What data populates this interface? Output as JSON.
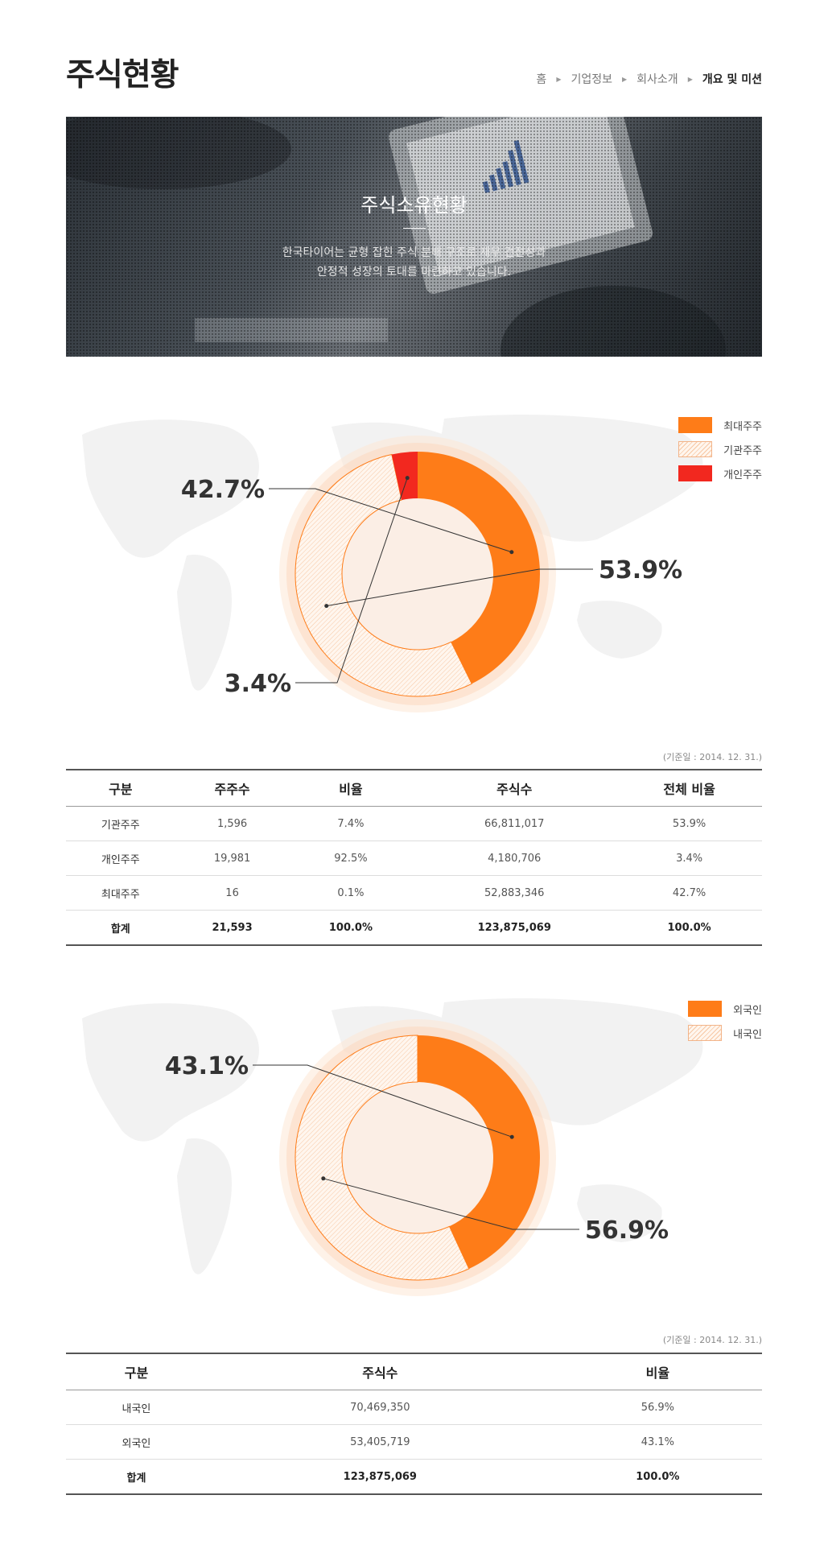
{
  "header": {
    "title": "주식현황",
    "breadcrumb": [
      "홈",
      "기업정보",
      "회사소개",
      "개요 및 미션"
    ]
  },
  "hero": {
    "title": "주식소유현황",
    "desc_line1": "한국타이어는 균형 잡힌 주식 분배 구조로 재무 건전성과",
    "desc_line2": "안정적 성장의 토대를 마련하고 있습니다."
  },
  "colors": {
    "orange": "#fe7c18",
    "red": "#f2281f",
    "hatch": "#f7c7a4",
    "map": "#f2f2f2"
  },
  "chart_data": [
    {
      "type": "pie",
      "variant": "donut",
      "series": [
        {
          "name": "최대주주",
          "value": 42.7,
          "label": "42.7%",
          "color": "#fe7c18"
        },
        {
          "name": "기관주주",
          "value": 53.9,
          "label": "53.9%",
          "color": "hatch"
        },
        {
          "name": "개인주주",
          "value": 3.4,
          "label": "3.4%",
          "color": "#f2281f"
        }
      ],
      "legend_position": "top-right"
    },
    {
      "type": "pie",
      "variant": "donut",
      "series": [
        {
          "name": "외국인",
          "value": 43.1,
          "label": "43.1%",
          "color": "#fe7c18"
        },
        {
          "name": "내국인",
          "value": 56.9,
          "label": "56.9%",
          "color": "hatch"
        }
      ],
      "legend_position": "top-right"
    }
  ],
  "reference_date": "(기준일 : 2014. 12. 31.)",
  "table1": {
    "headers": [
      "구분",
      "주주수",
      "비율",
      "주식수",
      "전체 비율"
    ],
    "rows": [
      [
        "기관주주",
        "1,596",
        "7.4%",
        "66,811,017",
        "53.9%"
      ],
      [
        "개인주주",
        "19,981",
        "92.5%",
        "4,180,706",
        "3.4%"
      ],
      [
        "최대주주",
        "16",
        "0.1%",
        "52,883,346",
        "42.7%"
      ]
    ],
    "total": [
      "합계",
      "21,593",
      "100.0%",
      "123,875,069",
      "100.0%"
    ]
  },
  "table2": {
    "headers": [
      "구분",
      "주식수",
      "비율"
    ],
    "rows": [
      [
        "내국인",
        "70,469,350",
        "56.9%"
      ],
      [
        "외국인",
        "53,405,719",
        "43.1%"
      ]
    ],
    "total": [
      "합계",
      "123,875,069",
      "100.0%"
    ]
  }
}
